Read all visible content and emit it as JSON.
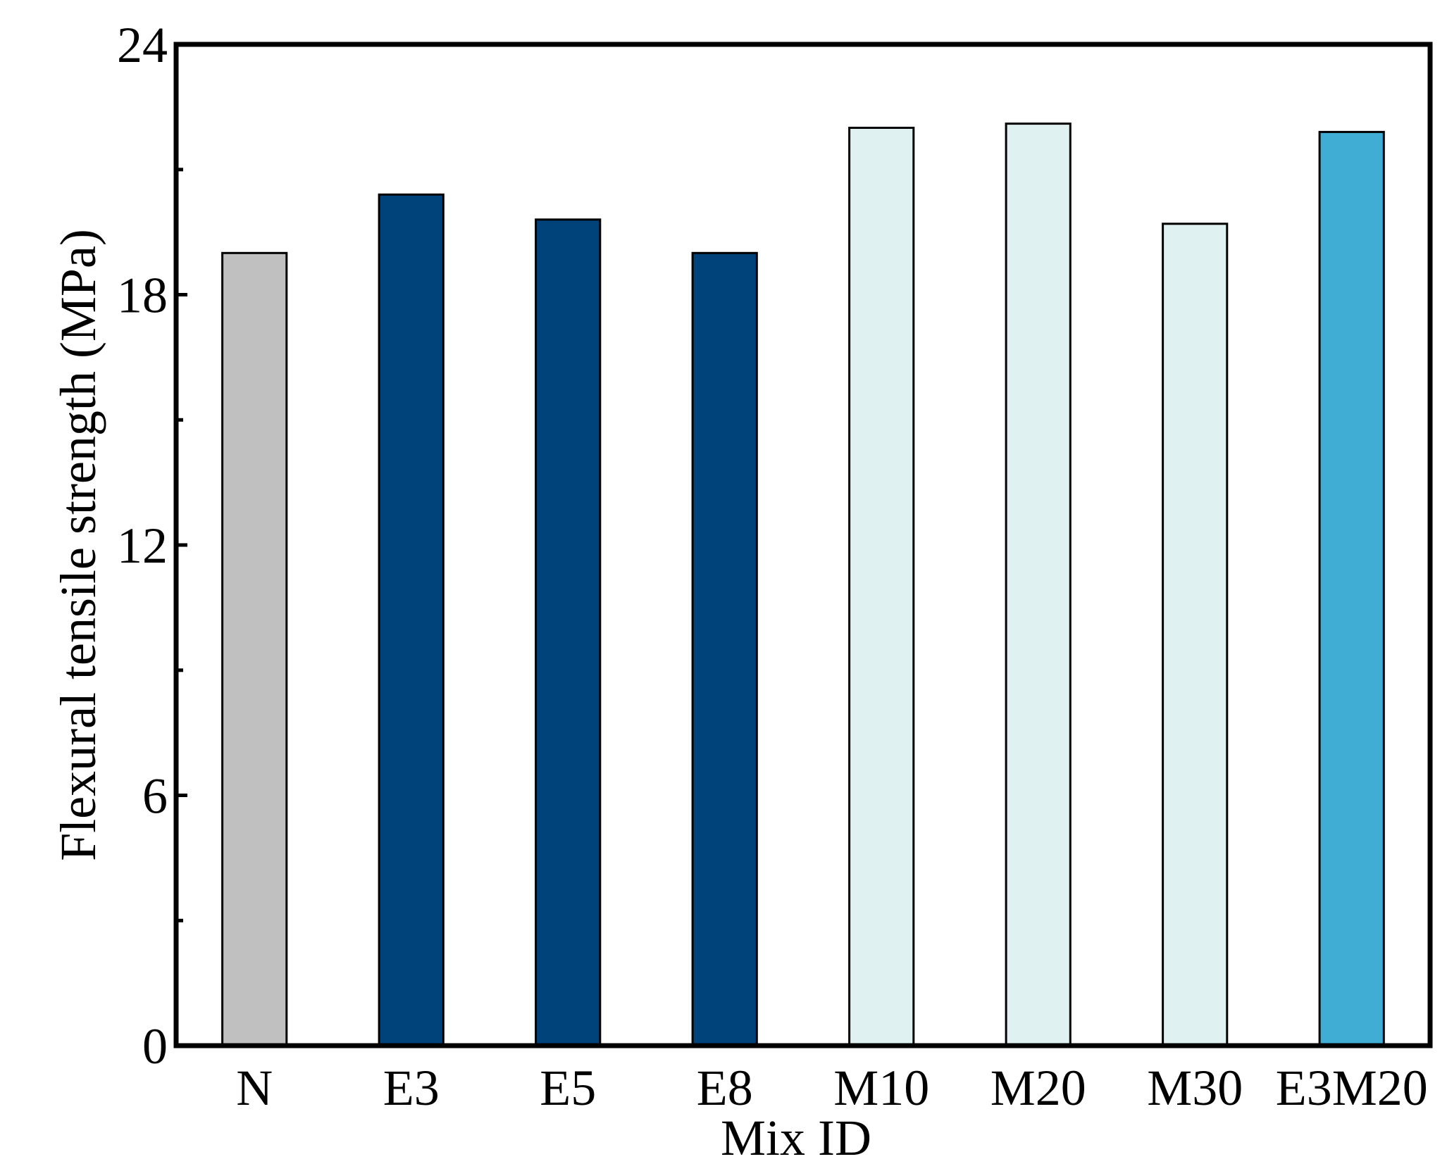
{
  "chart_data": {
    "type": "bar",
    "title": "",
    "xlabel": "Mix ID",
    "ylabel": "Flexural tensile strength (MPa)",
    "categories": [
      "N",
      "E3",
      "E5",
      "E8",
      "M10",
      "M20",
      "M30",
      "E3M20"
    ],
    "values": [
      19.0,
      20.4,
      19.8,
      19.0,
      22.0,
      22.1,
      19.7,
      21.9
    ],
    "bar_colors": [
      "#c0c0c0",
      "#00427a",
      "#00427a",
      "#00427a",
      "#e0f1f1",
      "#e0f1f1",
      "#e0f1f1",
      "#3fadd4"
    ],
    "ylim": [
      0,
      24
    ],
    "yticks": [
      0,
      6,
      12,
      18,
      24
    ],
    "ytick_labels": [
      "0",
      "6",
      "12",
      "18",
      "24"
    ],
    "minor_yticks": [
      3,
      9,
      15,
      21
    ],
    "grid": false,
    "legend": "none"
  }
}
